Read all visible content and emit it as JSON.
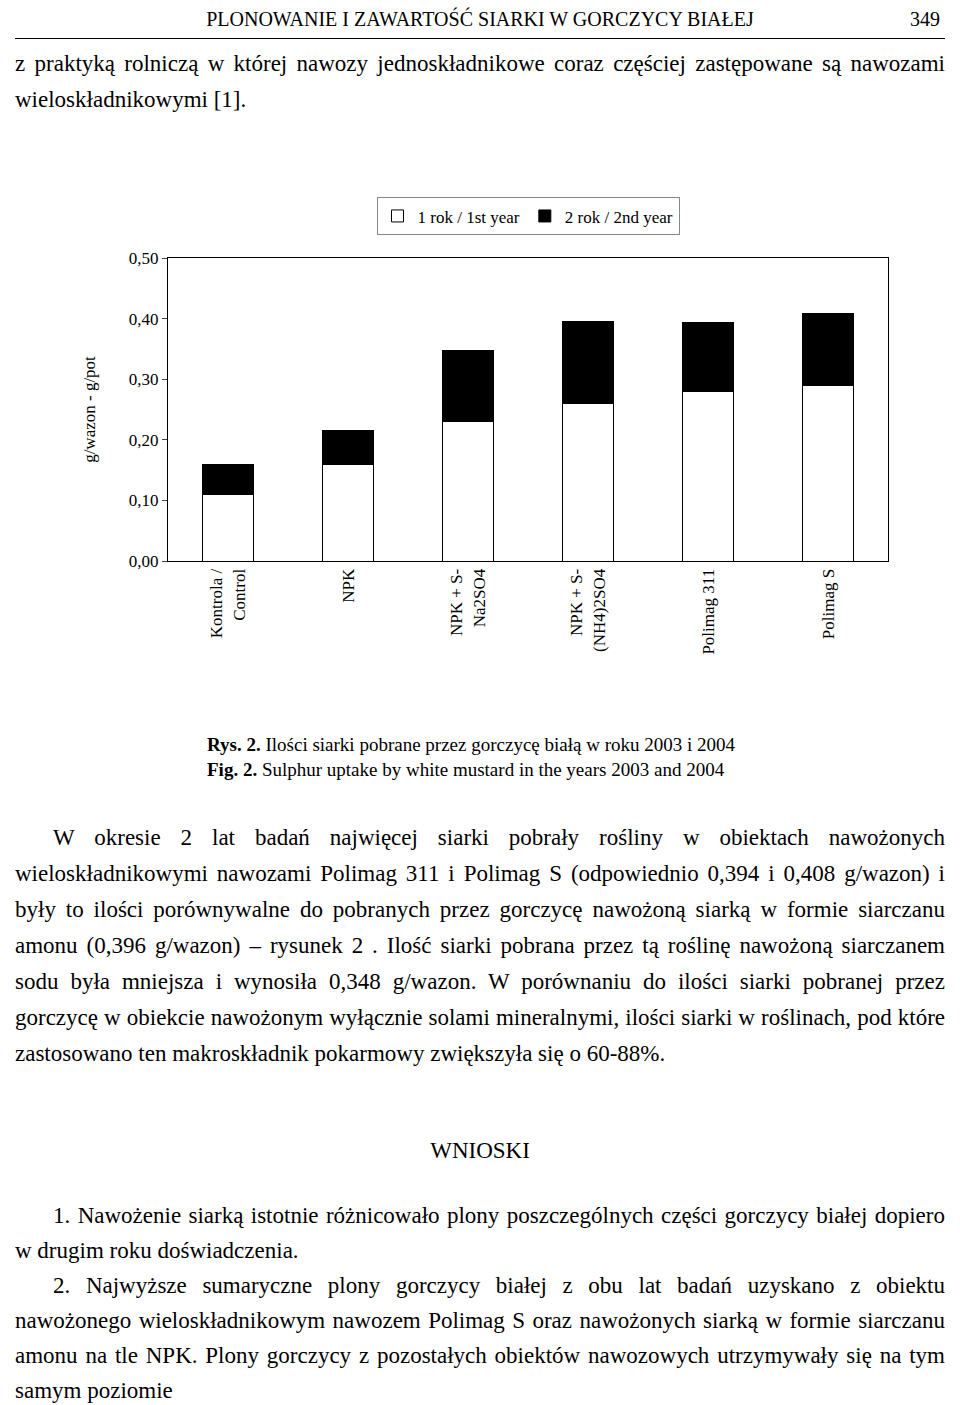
{
  "header": {
    "title": "PLONOWANIE I ZAWARTOŚĆ SIARKI W GORCZYCY BIAŁEJ",
    "page": "349"
  },
  "intro": "z praktyką rolniczą w której nawozy jednoskładnikowe coraz częściej zastępowane są nawozami wieloskładnikowymi [1].",
  "chart_data": {
    "type": "bar",
    "stacked": true,
    "y_label": "g/wazon - g/pot",
    "categories": [
      "Kontrola /\nControl",
      "NPK",
      "NPK + S-\nNa2SO4",
      "NPK + S-\n(NH4)2SO4",
      "Polimag 311",
      "Polimag S"
    ],
    "series": [
      {
        "name": "1 rok / 1st year",
        "color": "#ffffff",
        "values": [
          0.11,
          0.16,
          0.23,
          0.26,
          0.28,
          0.29
        ]
      },
      {
        "name": "2 rok / 2nd year",
        "color": "#000000",
        "values": [
          0.05,
          0.055,
          0.118,
          0.136,
          0.114,
          0.118
        ]
      }
    ],
    "ylim": [
      0,
      0.5
    ],
    "yticks": [
      {
        "value": 0,
        "label": "0,00"
      },
      {
        "value": 0.1,
        "label": "0,10"
      },
      {
        "value": 0.2,
        "label": "0,20"
      },
      {
        "value": 0.3,
        "label": "0,30"
      },
      {
        "value": 0.4,
        "label": "0,40"
      },
      {
        "value": 0.5,
        "label": "0,50"
      }
    ],
    "grid": false,
    "legend": "top"
  },
  "caption": [
    {
      "label": "Rys. 2.",
      "text": "Ilości siarki pobrane przez gorczycę białą w roku 2003 i 2004"
    },
    {
      "label": "Fig. 2.",
      "text": "Sulphur uptake by white mustard in the years 2003 and 2004"
    }
  ],
  "body": "W okresie 2 lat badań najwięcej siarki pobrały rośliny w obiektach nawożonych wieloskładnikowymi nawozami Polimag 311 i Polimag S (odpowiednio 0,394 i 0,408 g/wazon) i były to ilości porównywalne do pobranych przez gorczycę nawożoną siarką w formie siarczanu amonu (0,396 g/wazon) – rysunek 2 . Ilość siarki pobrana przez tą roślinę nawożoną siarczanem sodu była mniejsza i wynosiła 0,348 g/wazon. W porównaniu do ilości siarki pobranej przez gorczycę w obiekcie nawożonym wyłącznie solami mineralnymi, ilości siarki w roślinach, pod które zastosowano ten makroskładnik pokarmowy zwiększyła się o 60-88%.",
  "conclusions": {
    "heading": "WNIOSKI",
    "items": [
      {
        "number": "1.",
        "text": "Nawożenie siarką istotnie różnicowało plony poszczególnych części gorczycy białej dopiero w drugim roku doświadczenia."
      },
      {
        "number": "2.",
        "text": "Najwyższe sumaryczne plony gorczycy białej z obu lat badań uzyskano z obiektu nawożonego wieloskładnikowym nawozem Polimag S oraz nawożonych siarką w formie siarczanu amonu na tle NPK. Plony gorczycy z pozostałych obiektów nawozowych utrzymywały się na tym samym poziomie"
      }
    ]
  }
}
